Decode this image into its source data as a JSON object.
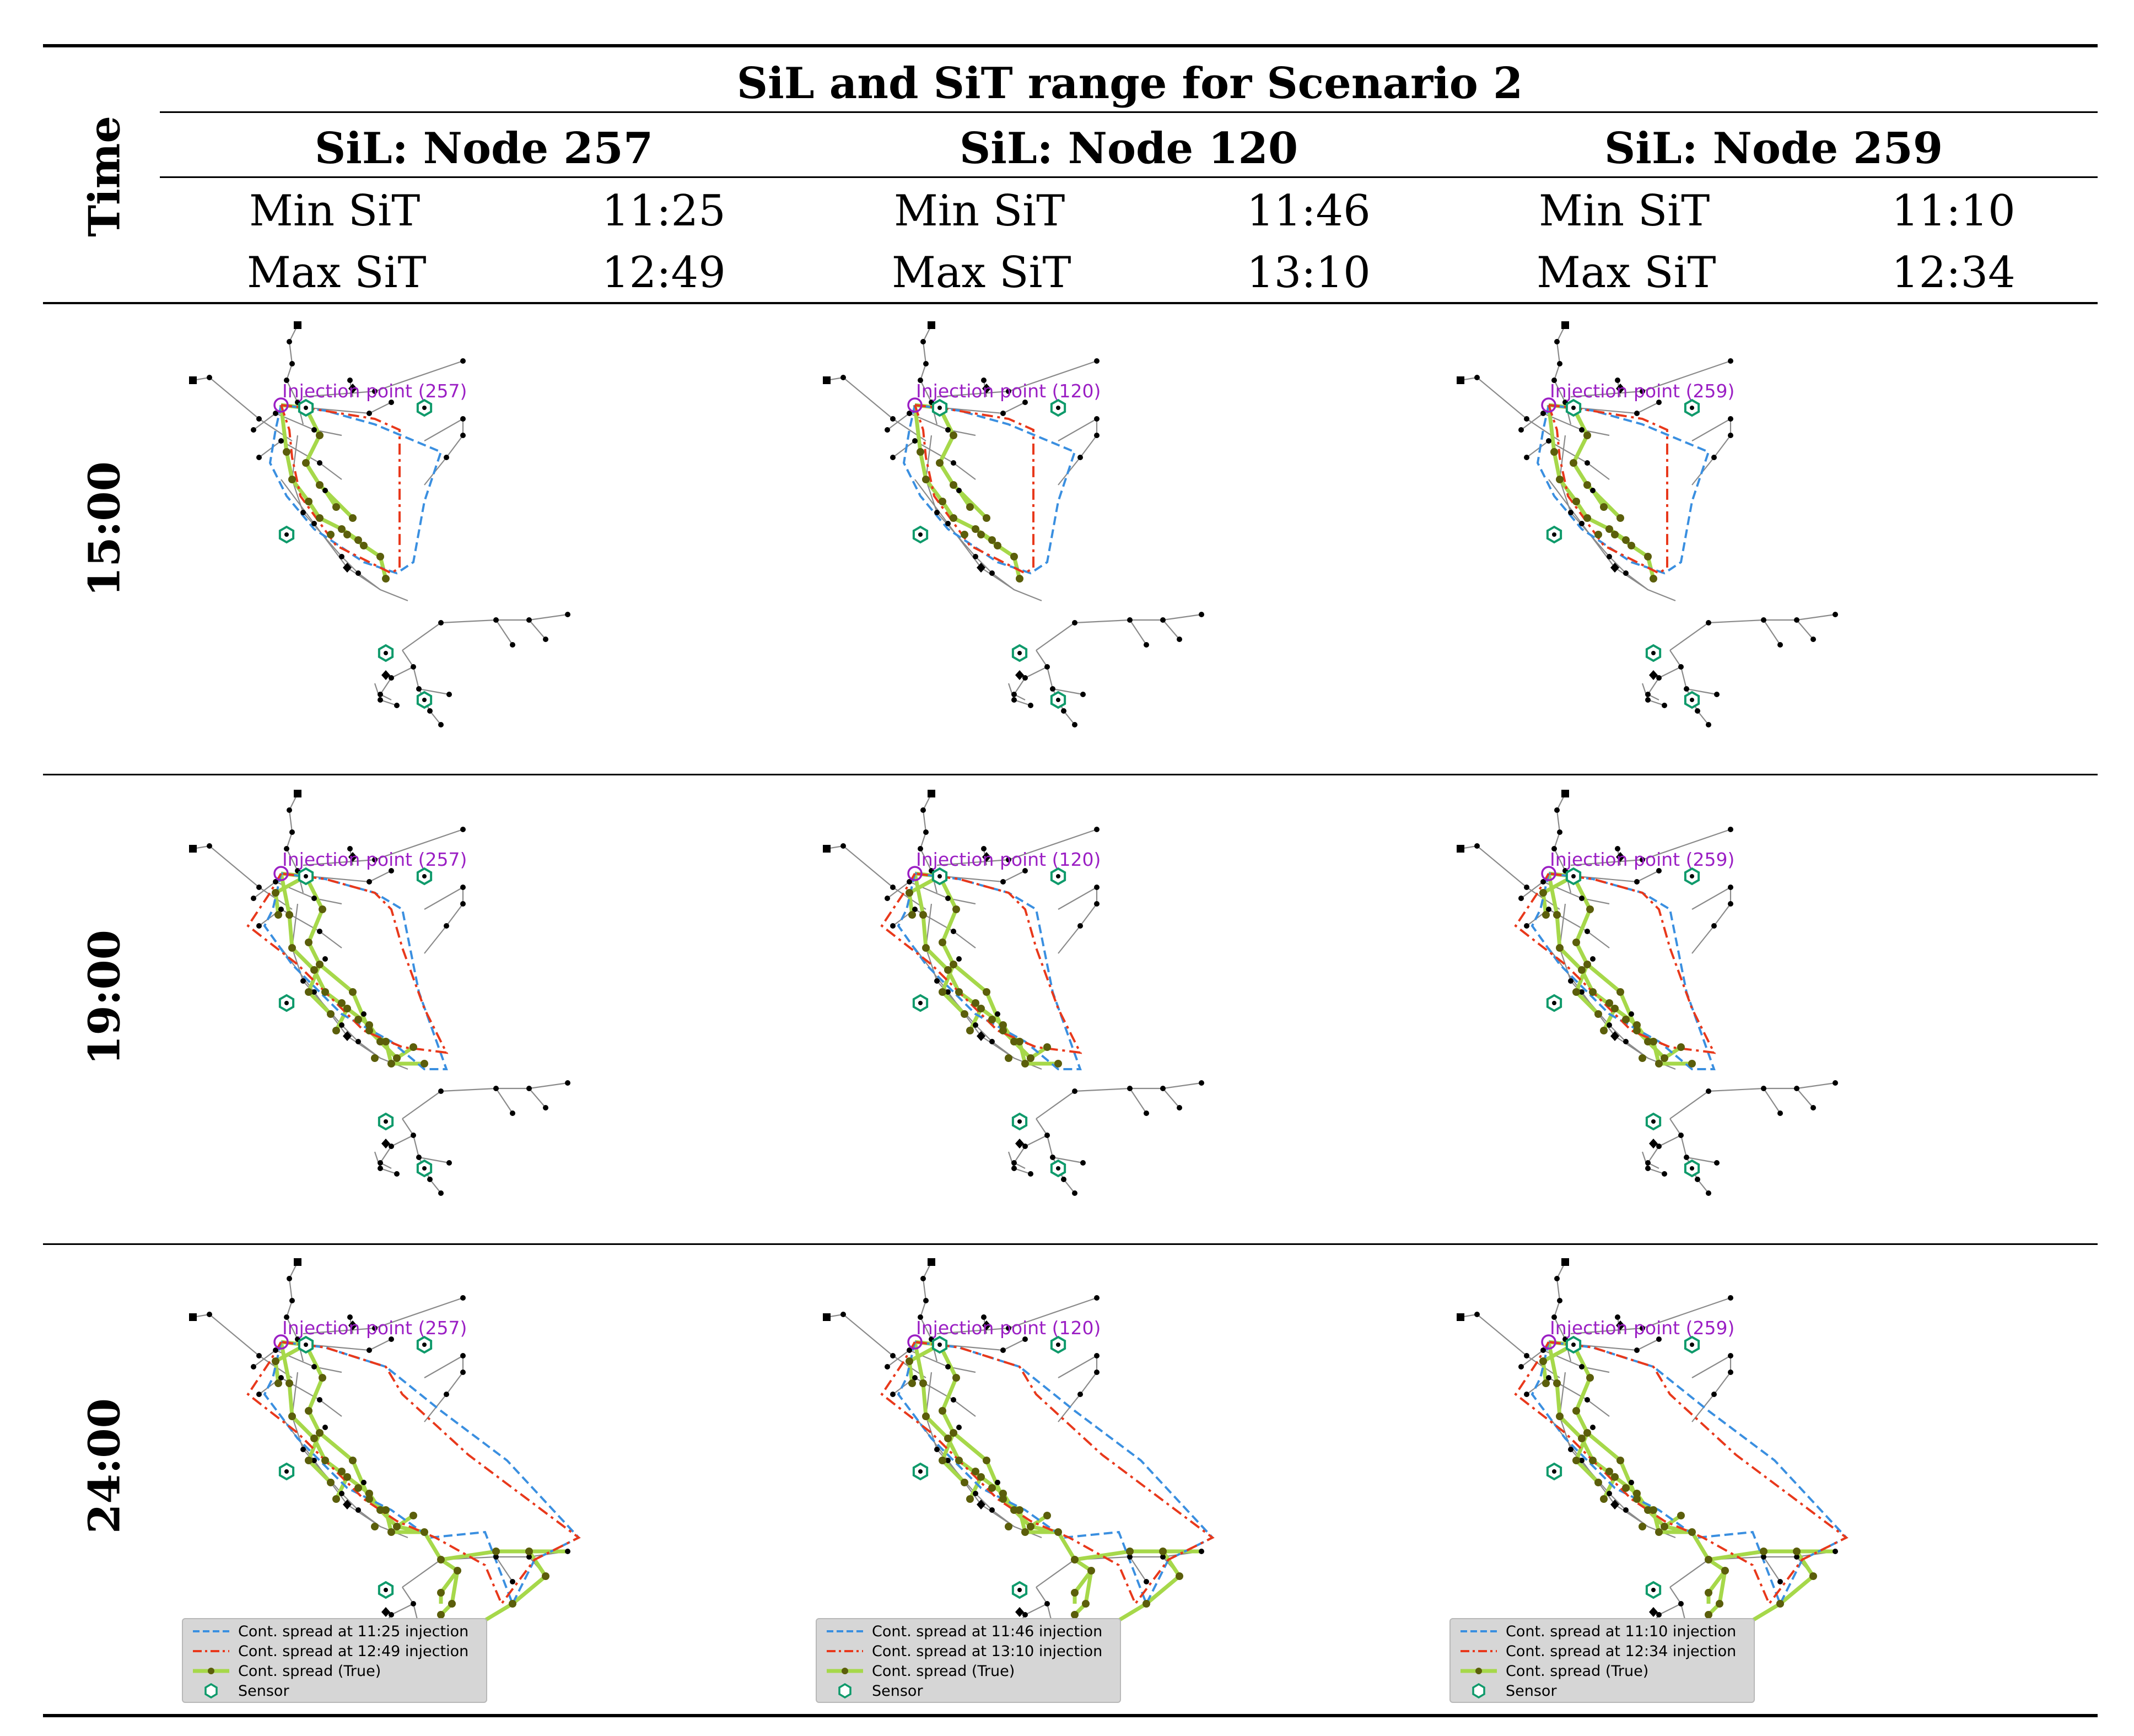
{
  "table": {
    "title": "SiL and SiT range for Scenario 2",
    "time_header": "Time",
    "columns": [
      {
        "sil": "SiL: Node 257",
        "min_label": "Min SiT",
        "min_value": "11:25",
        "max_label": "Max SiT",
        "max_value": "12:49"
      },
      {
        "sil": "SiL: Node 120",
        "min_label": "Min SiT",
        "min_value": "11:46",
        "max_label": "Max SiT",
        "max_value": "13:10"
      },
      {
        "sil": "SiL: Node 259",
        "min_label": "Min SiT",
        "min_value": "11:10",
        "max_label": "Max SiT",
        "max_value": "12:34"
      }
    ],
    "rows": [
      {
        "time": "15:00"
      },
      {
        "time": "19:00"
      },
      {
        "time": "24:00"
      }
    ]
  },
  "injection_labels": [
    "Injection point (257)",
    "Injection point (120)",
    "Injection point (259)"
  ],
  "legends": [
    {
      "blue": "Cont. spread at 11:25 injection",
      "red": "Cont. spread at 12:49 injection",
      "green": "Cont. spread (True)",
      "sensor": "Sensor"
    },
    {
      "blue": "Cont. spread at 11:46 injection",
      "red": "Cont. spread at 13:10 injection",
      "green": "Cont. spread (True)",
      "sensor": "Sensor"
    },
    {
      "blue": "Cont. spread at 11:10 injection",
      "red": "Cont. spread at 12:34 injection",
      "green": "Cont. spread (True)",
      "sensor": "Sensor"
    }
  ],
  "colors": {
    "blue_dashed": "#3a8fe0",
    "red_dashdot": "#e8381b",
    "green_true": "#a6d84a",
    "node_true": "#5b5e0b",
    "sensor": "#0f9a6b",
    "injection": "#9b1fc4",
    "network_edge": "#8a8a8a",
    "network_node": "#000000"
  }
}
